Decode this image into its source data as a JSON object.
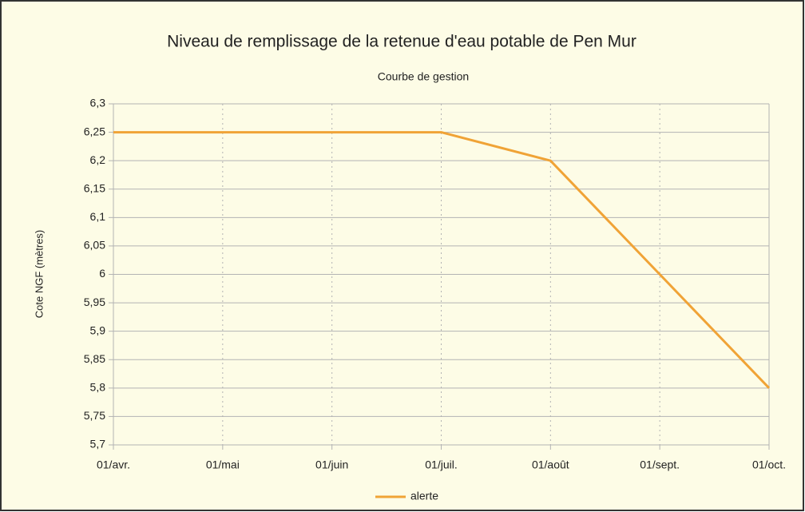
{
  "chart_data": {
    "type": "line",
    "title": "Niveau de remplissage de la retenue d'eau potable de Pen Mur",
    "subtitle": "Courbe de gestion",
    "y_label": "Cote NGF (mètres)",
    "categories": [
      "01/avr.",
      "01/mai",
      "01/juin",
      "01/juil.",
      "01/août",
      "01/sept.",
      "01/oct."
    ],
    "series": [
      {
        "name": "alerte",
        "color": "#f0a336",
        "values": [
          6.25,
          6.25,
          6.25,
          6.25,
          6.2,
          6.0,
          5.8
        ]
      }
    ],
    "ylim": [
      5.7,
      6.3
    ],
    "yticks": [
      {
        "value": 5.7,
        "label": "5,7"
      },
      {
        "value": 5.75,
        "label": "5,75"
      },
      {
        "value": 5.8,
        "label": "5,8"
      },
      {
        "value": 5.85,
        "label": "5,85"
      },
      {
        "value": 5.9,
        "label": "5,9"
      },
      {
        "value": 5.95,
        "label": "5,95"
      },
      6,
      {
        "value": 6.05,
        "label": "6,05"
      },
      {
        "value": 6.1,
        "label": "6,1"
      },
      {
        "value": 6.15,
        "label": "6,15"
      },
      {
        "value": 6.2,
        "label": "6,2"
      },
      {
        "value": 6.25,
        "label": "6,25"
      },
      {
        "value": 6.3,
        "label": "6,3"
      }
    ],
    "grid": true,
    "legend": "bottom"
  }
}
